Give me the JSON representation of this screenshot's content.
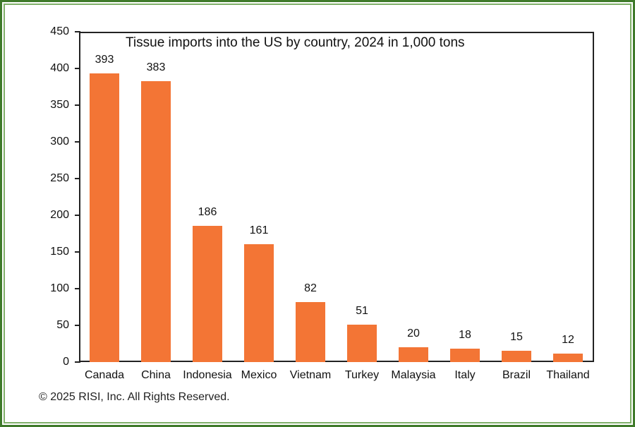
{
  "chart_data": {
    "type": "bar",
    "title": "Tissue imports into the US by country, 2024 in 1,000 tons",
    "categories": [
      "Canada",
      "China",
      "Indonesia",
      "Mexico",
      "Vietnam",
      "Turkey",
      "Malaysia",
      "Italy",
      "Brazil",
      "Thailand"
    ],
    "values": [
      393,
      383,
      186,
      161,
      82,
      51,
      20,
      18,
      15,
      12
    ],
    "xlabel": "",
    "ylabel": "",
    "ylim": [
      0,
      450
    ],
    "yticks": [
      0,
      50,
      100,
      150,
      200,
      250,
      300,
      350,
      400,
      450
    ],
    "data_labels": true,
    "grid": false,
    "legend": null,
    "bar_color": "#f37535"
  },
  "footer": {
    "copyright": "© 2025 RISI, Inc. All Rights Reserved."
  },
  "colors": {
    "bar": "#f37535",
    "frame_outer": "#3f7a2a",
    "frame_inner": "#7fb069",
    "axis": "#222222"
  }
}
